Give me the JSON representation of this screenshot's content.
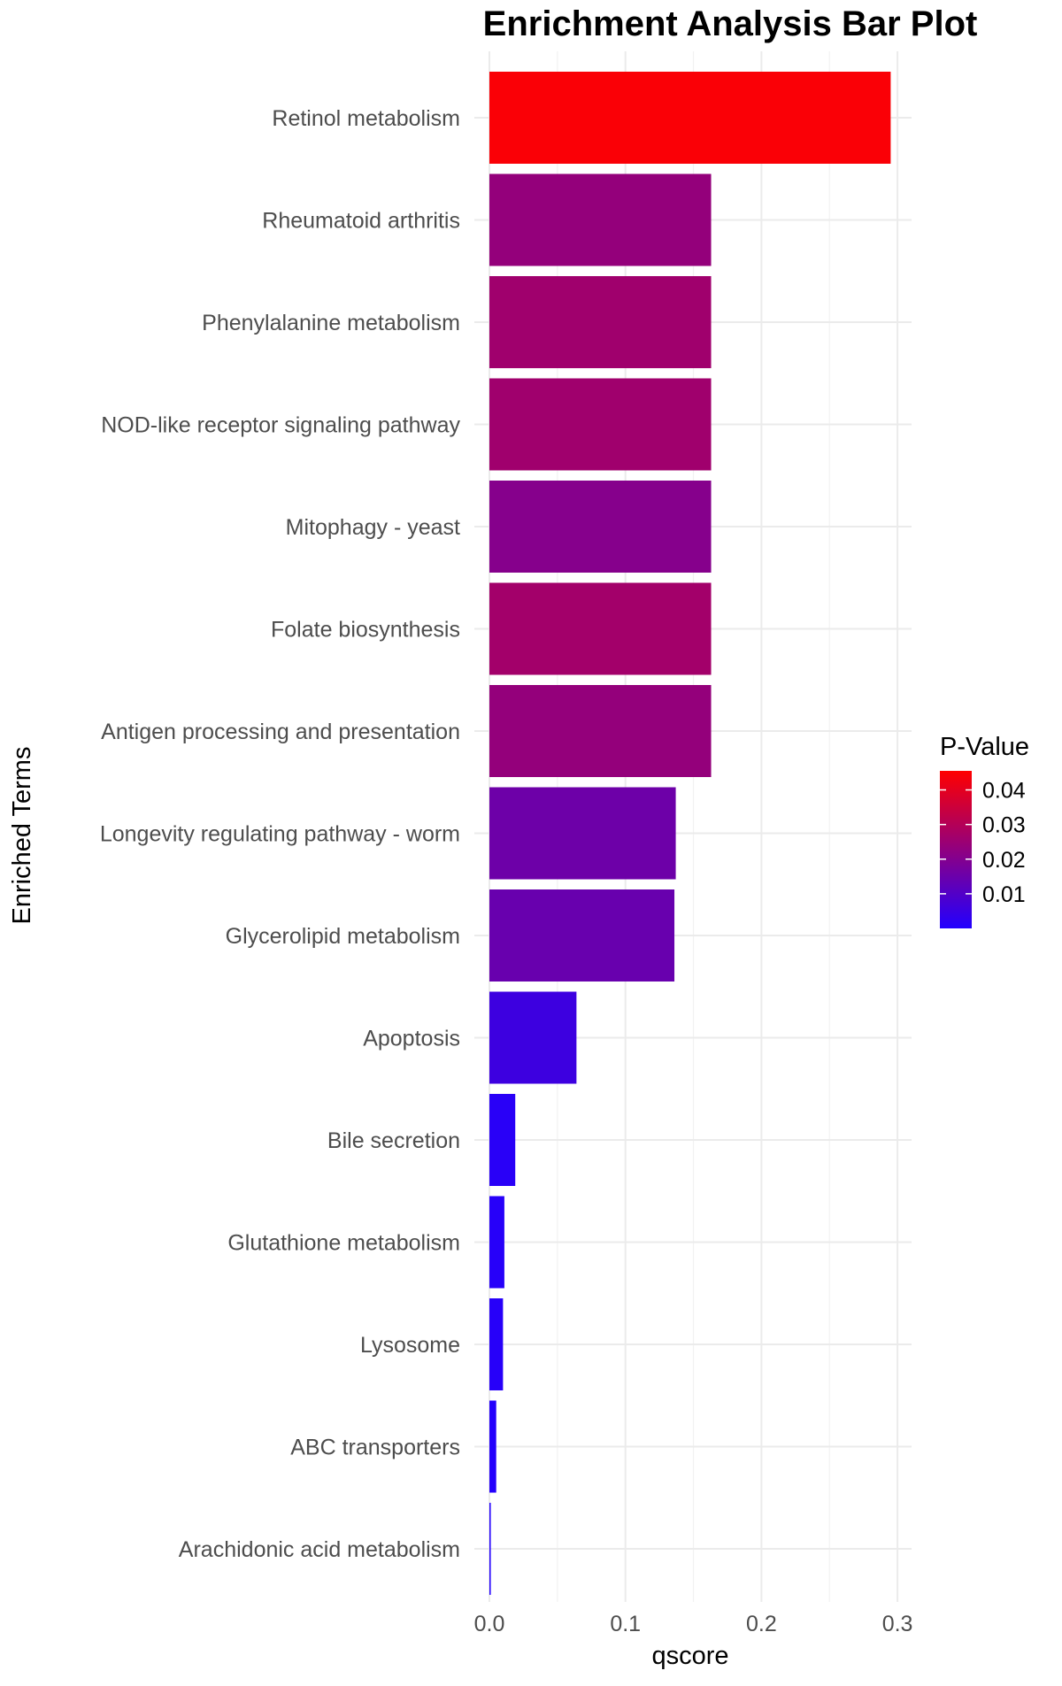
{
  "chart_data": {
    "type": "bar",
    "orientation": "horizontal",
    "title": "Enrichment Analysis Bar Plot",
    "xlabel": "qscore",
    "ylabel": "Enriched Terms",
    "xlim": [
      0,
      0.31
    ],
    "xticks": [
      0.0,
      0.1,
      0.2,
      0.3
    ],
    "xtick_labels": [
      "0.0",
      "0.1",
      "0.2",
      "0.3"
    ],
    "grid": true,
    "categories": [
      "Retinol metabolism",
      "Rheumatoid arthritis",
      "Phenylalanine metabolism",
      "NOD-like receptor signaling pathway",
      "Mitophagy - yeast",
      "Folate biosynthesis",
      "Antigen processing and presentation",
      "Longevity regulating pathway - worm",
      "Glycerolipid metabolism",
      "Apoptosis",
      "Bile secretion",
      "Glutathione metabolism",
      "Lysosome",
      "ABC transporters",
      "Arachidonic acid metabolism"
    ],
    "values": [
      0.295,
      0.163,
      0.163,
      0.163,
      0.163,
      0.163,
      0.163,
      0.137,
      0.136,
      0.064,
      0.019,
      0.011,
      0.01,
      0.005,
      0.001
    ],
    "fill_values": [
      0.0445,
      0.0235,
      0.026,
      0.026,
      0.0205,
      0.0265,
      0.0235,
      0.0155,
      0.0145,
      0.0055,
      0.0015,
      0.001,
      0.001,
      0.0005,
      0.0
    ],
    "legend": {
      "title": "P-Value",
      "position": "right",
      "ticks": [
        0.04,
        0.03,
        0.02,
        0.01
      ],
      "tick_labels": [
        "0.04",
        "0.03",
        "0.02",
        "0.01"
      ],
      "range": [
        0.0,
        0.0455
      ],
      "low_color": "#2200FF",
      "high_color": "#FF0000"
    }
  }
}
